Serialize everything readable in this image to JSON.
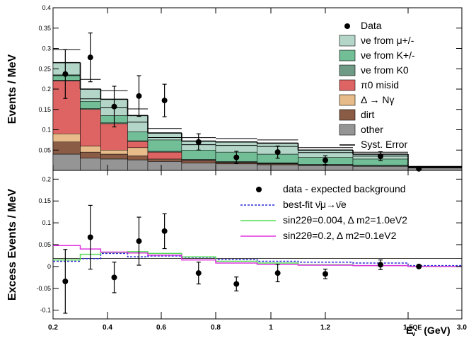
{
  "colors": {
    "nue_mu": "#b3d6c9",
    "nue_K": "#72be97",
    "nue_K0": "#6f9a86",
    "pi0": "#de6464",
    "dgamma": "#e8bc8a",
    "dirt": "#8a5c46",
    "other": "#959595",
    "bestfit": "#2a2ad8",
    "sig_a": "#55dd55",
    "sig_b": "#e034e0"
  },
  "chart_data": [
    {
      "type": "histogram",
      "ylabel": "Events / MeV",
      "ylim": [
        0,
        0.4
      ],
      "yticks": [
        "0.05",
        "0.1",
        "0.15",
        "0.2",
        "0.25",
        "0.3",
        "0.35",
        "0.4"
      ],
      "bin_edges": [
        200,
        300,
        375,
        475,
        550,
        675,
        800,
        950,
        1100,
        1300,
        1500,
        3000
      ],
      "stack": [
        {
          "name": "other",
          "label": "other",
          "color_key": "other",
          "values": [
            0.04,
            0.03,
            0.028,
            0.026,
            0.022,
            0.018,
            0.016,
            0.014,
            0.012,
            0.01,
            0.006
          ]
        },
        {
          "name": "dirt",
          "label": "dirt",
          "color_key": "dirt",
          "values": [
            0.03,
            0.015,
            0.012,
            0.01,
            0.006,
            0.005,
            0.003,
            0.002,
            0.001,
            0.001,
            0.0
          ]
        },
        {
          "name": "delta",
          "label": "Δ → Nγ",
          "color_key": "dgamma",
          "values": [
            0.02,
            0.015,
            0.01,
            0.02,
            0.0,
            0.0,
            0.0,
            0.0,
            0.0,
            0.0,
            0.0
          ]
        },
        {
          "name": "pi0",
          "label": "π0 misid",
          "color_key": "pi0",
          "values": [
            0.13,
            0.09,
            0.065,
            0.015,
            0.017,
            0.002,
            0.001,
            0.001,
            0.0,
            0.0,
            0.0
          ]
        },
        {
          "name": "nue_K0",
          "label": "νe from K0",
          "color_key": "nue_K0",
          "values": [
            0.002,
            0.002,
            0.002,
            0.002,
            0.002,
            0.002,
            0.002,
            0.002,
            0.002,
            0.002,
            0.001
          ]
        },
        {
          "name": "nue_K",
          "label": "νe from K+/-",
          "color_key": "nue_K",
          "values": [
            0.013,
            0.018,
            0.018,
            0.022,
            0.028,
            0.023,
            0.023,
            0.021,
            0.017,
            0.015,
            0.001
          ]
        },
        {
          "name": "nue_mu",
          "label": "νe from μ+/-",
          "color_key": "nue_mu",
          "values": [
            0.03,
            0.03,
            0.04,
            0.04,
            0.017,
            0.022,
            0.025,
            0.027,
            0.018,
            0.012,
            0.001
          ]
        }
      ],
      "data": {
        "x": [
          245,
          337,
          425,
          517,
          612,
          737,
          875,
          1025,
          1200,
          1400,
          1800
        ],
        "y": [
          0.237,
          0.278,
          0.157,
          0.183,
          0.172,
          0.07,
          0.032,
          0.045,
          0.025,
          0.035,
          0.004
        ],
        "err": [
          0.06,
          0.06,
          0.05,
          0.05,
          0.04,
          0.02,
          0.015,
          0.015,
          0.011,
          0.011,
          0.002
        ]
      },
      "legend": {
        "position": "top-right",
        "entries": [
          {
            "kind": "marker",
            "label": "Data"
          },
          {
            "kind": "box",
            "color_key": "nue_mu",
            "label": "νe from μ+/-"
          },
          {
            "kind": "box",
            "color_key": "nue_K",
            "label": "νe from K+/-"
          },
          {
            "kind": "box",
            "color_key": "nue_K0",
            "label": "νe from K0"
          },
          {
            "kind": "box",
            "color_key": "pi0",
            "label": "π0 misid"
          },
          {
            "kind": "box",
            "color_key": "dgamma",
            "label": "Δ → Nγ"
          },
          {
            "kind": "box",
            "color_key": "dirt",
            "label": "dirt"
          },
          {
            "kind": "box",
            "color_key": "other",
            "label": "other"
          },
          {
            "kind": "line",
            "label": "Syst. Error"
          }
        ]
      }
    },
    {
      "type": "line",
      "ylabel": "Excess Events / MeV",
      "xlabel": "E_ν^QE (GeV)",
      "ylim": [
        -0.12,
        0.22
      ],
      "yticks": [
        "-0.1",
        "-0.05",
        "0",
        "0.05",
        "0.1",
        "0.15",
        "0.2"
      ],
      "xticks": [
        "0.2",
        "0.4",
        "0.6",
        "0.8",
        "1",
        "1.2",
        "1.5",
        "3.0"
      ],
      "bin_edges": [
        200,
        300,
        375,
        475,
        550,
        675,
        800,
        950,
        1100,
        1300,
        1500,
        3000
      ],
      "data": {
        "x": [
          245,
          337,
          425,
          517,
          612,
          737,
          875,
          1025,
          1200,
          1400,
          1800
        ],
        "y": [
          -0.034,
          0.067,
          -0.025,
          0.058,
          0.081,
          -0.015,
          -0.04,
          -0.015,
          -0.017,
          0.004,
          0.0
        ],
        "err": [
          0.073,
          0.073,
          0.035,
          0.055,
          0.04,
          0.025,
          0.016,
          0.02,
          0.011,
          0.011,
          0.003
        ]
      },
      "series": [
        {
          "name": "best-fit",
          "color_key": "bestfit",
          "dashed": true,
          "values": [
            0.012,
            0.018,
            0.03,
            0.022,
            0.024,
            0.021,
            0.016,
            0.012,
            0.01,
            0.008,
            0.002
          ]
        },
        {
          "name": "sin22θ=0.004",
          "color_key": "sig_a",
          "dashed": false,
          "values": [
            0.015,
            0.028,
            0.032,
            0.034,
            0.03,
            0.022,
            0.012,
            0.008,
            0.004,
            0.002,
            0.0
          ]
        },
        {
          "name": "sin22θ=0.2",
          "color_key": "sig_b",
          "dashed": false,
          "values": [
            0.048,
            0.04,
            0.033,
            0.031,
            0.026,
            0.015,
            0.008,
            0.005,
            0.003,
            0.002,
            0.0
          ]
        }
      ],
      "legend": {
        "position": "top-right",
        "entries": [
          {
            "kind": "marker",
            "label": "data - expected background"
          },
          {
            "kind": "line",
            "color_key": "bestfit",
            "dashed": true,
            "label": "best-fit ν̄μ→ν̄e"
          },
          {
            "kind": "line",
            "color_key": "sig_a",
            "label": "sin22θ=0.004, Δ m2=1.0eV2"
          },
          {
            "kind": "line",
            "color_key": "sig_b",
            "label": "sin22θ=0.2, Δ m2=0.1eV2"
          }
        ]
      }
    }
  ]
}
